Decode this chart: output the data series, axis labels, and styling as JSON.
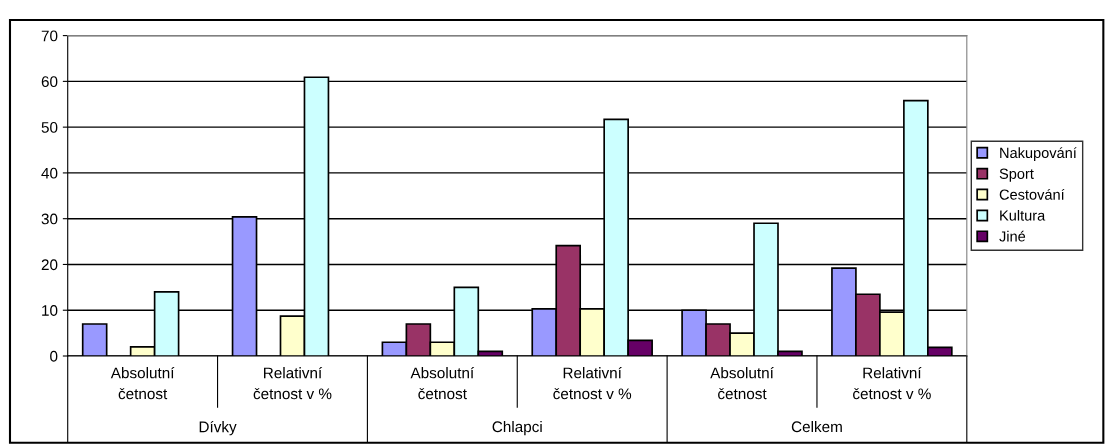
{
  "chart_data": {
    "type": "bar",
    "categories": [
      "Absolutní\nčetnost",
      "Relativní\nčetnost v %",
      "Absolutní\nčetnost",
      "Relativní\nčetnost v %",
      "Absolutní\nčetnost",
      "Relativní\nčetnost v %"
    ],
    "annotations": [
      "Dívky",
      "Chlapci",
      "Celkem"
    ],
    "series": [
      {
        "name": "Nakupování",
        "color": "#9999ff",
        "values": [
          7,
          30.4,
          3,
          10.3,
          10,
          19.2
        ]
      },
      {
        "name": "Sport",
        "color": "#993366",
        "values": [
          null,
          null,
          7,
          24.1,
          7,
          13.5
        ]
      },
      {
        "name": "Cestování",
        "color": "#ffffcc",
        "values": [
          2,
          8.7,
          3,
          10.3,
          5,
          9.6
        ]
      },
      {
        "name": "Kultura",
        "color": "#ccffff",
        "values": [
          14,
          60.9,
          15,
          51.7,
          29,
          55.8
        ]
      },
      {
        "name": "Jiné",
        "color": "#660066",
        "values": [
          null,
          null,
          1,
          3.4,
          1,
          1.9
        ]
      }
    ],
    "ylim": [
      0,
      70
    ],
    "yticks": [
      0,
      10,
      20,
      30,
      40,
      50,
      60,
      70
    ],
    "grid": "y",
    "legend": "right"
  }
}
